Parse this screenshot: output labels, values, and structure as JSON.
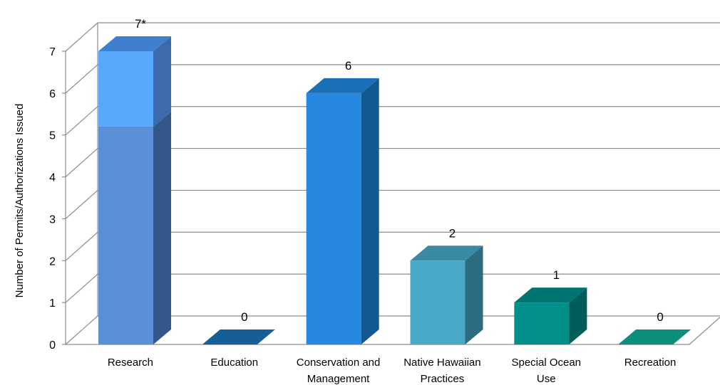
{
  "chart_data": {
    "type": "bar",
    "title": "",
    "xlabel": "",
    "ylabel": "Number of Permits/Authorizations Issued",
    "ylim": [
      0,
      7
    ],
    "yticks": [
      0,
      1,
      2,
      3,
      4,
      5,
      6,
      7
    ],
    "grid": true,
    "categories": [
      "Research",
      "Education",
      "Conservation and Management",
      "Native Hawaiian Practices",
      "Special Ocean Use",
      "Recreation"
    ],
    "category_lines": [
      [
        "Research"
      ],
      [
        "Education"
      ],
      [
        "Conservation and",
        "Management"
      ],
      [
        "Native Hawaiian",
        "Practices"
      ],
      [
        "Special Ocean",
        "Use"
      ],
      [
        "Recreation"
      ]
    ],
    "values": [
      7,
      0,
      6,
      2,
      1,
      0
    ],
    "data_labels": [
      "7*",
      "0",
      "6",
      "2",
      "1",
      "0"
    ],
    "stacked_segments": [
      [
        5.2,
        1.8
      ],
      [
        0
      ],
      [
        6
      ],
      [
        2
      ],
      [
        1
      ],
      [
        0
      ]
    ],
    "colors": [
      {
        "front": [
          "#5b8fd8",
          "#58a8fd"
        ],
        "side": [
          "#33578a",
          "#3c6aad"
        ],
        "top": "#3f7fd0"
      },
      {
        "front": [
          "#155f95"
        ],
        "side": [
          "#104a74"
        ],
        "top": "#165f96"
      },
      {
        "front": [
          "#2788e0"
        ],
        "side": [
          "#135991"
        ],
        "top": "#1b6fb6"
      },
      {
        "front": [
          "#48a9c7"
        ],
        "side": [
          "#2d6c80"
        ],
        "top": "#3a8aa4"
      },
      {
        "front": [
          "#018f8a"
        ],
        "side": [
          "#005d59"
        ],
        "top": "#007470"
      },
      {
        "front": [
          "#0f8b7b"
        ],
        "side": [
          "#0a6559"
        ],
        "top": "#0d8d7c"
      }
    ]
  }
}
